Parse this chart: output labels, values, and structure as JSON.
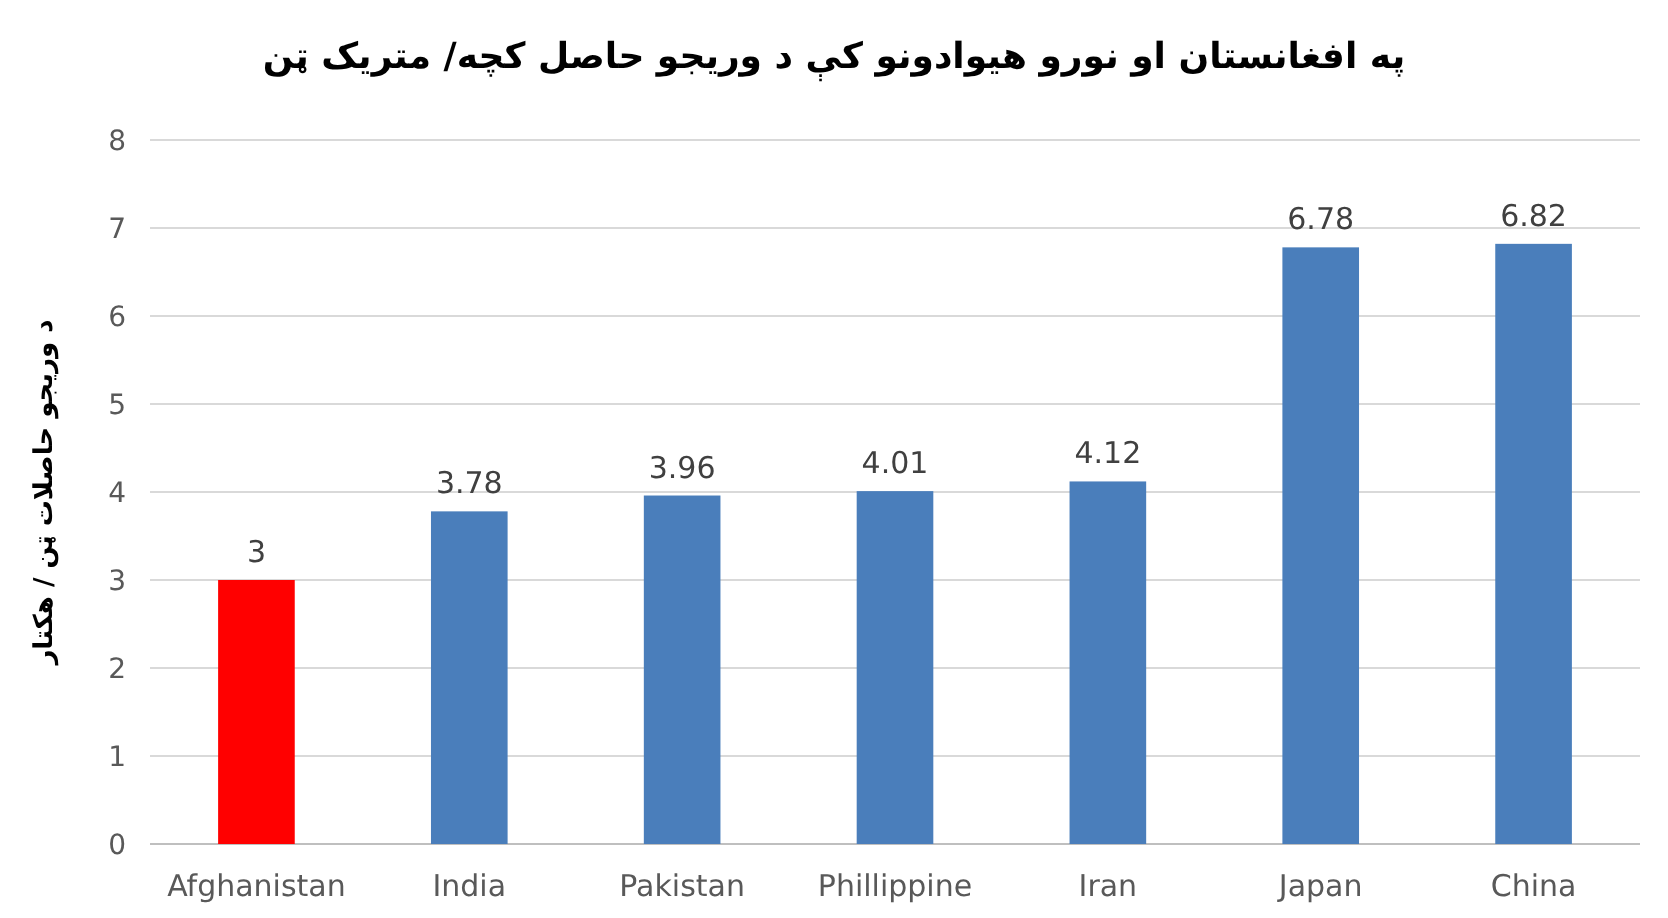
{
  "chart_data": {
    "type": "bar",
    "title": "په افغانستان او نورو هیوادونو کې د وریجو حاصل کچه/ متریک ټن",
    "ylabel": "د وریجو حاصلات ټن / هکتار",
    "categories": [
      "Afghanistan",
      "India",
      "Pakistan",
      "Phillippine",
      "Iran",
      "Japan",
      "China"
    ],
    "values": [
      3,
      3.78,
      3.96,
      4.01,
      4.12,
      6.78,
      6.82
    ],
    "colors": [
      "#ff0000",
      "#4a7ebb",
      "#4a7ebb",
      "#4a7ebb",
      "#4a7ebb",
      "#4a7ebb",
      "#4a7ebb"
    ],
    "ylim": [
      0,
      8
    ],
    "yticks": [
      0,
      1,
      2,
      3,
      4,
      5,
      6,
      7,
      8
    ],
    "grid": "y",
    "data_labels": true
  }
}
